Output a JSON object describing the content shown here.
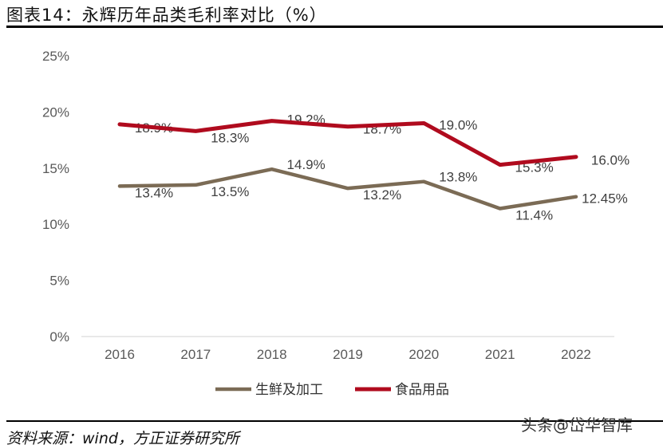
{
  "title": "图表14：永辉历年品类毛利率对比（%）",
  "source": "资料来源：wind，方正证券研究所",
  "watermark": "头条@岱华智库",
  "chart_data": {
    "type": "line",
    "title": "",
    "xlabel": "",
    "ylabel": "",
    "categories": [
      "2016",
      "2017",
      "2018",
      "2019",
      "2020",
      "2021",
      "2022"
    ],
    "ylim": [
      0,
      25
    ],
    "yticks": [
      "0%",
      "5%",
      "10%",
      "15%",
      "20%",
      "25%"
    ],
    "grid": false,
    "legend": "bottom",
    "series": [
      {
        "name": "生鲜及加工",
        "color": "#7b6b55",
        "values": [
          13.4,
          13.5,
          14.9,
          13.2,
          13.8,
          11.4,
          12.45
        ],
        "labels": [
          "13.4%",
          "13.5%",
          "14.9%",
          "13.2%",
          "13.8%",
          "11.4%",
          "12.45%"
        ]
      },
      {
        "name": "食品用品",
        "color": "#b00b1e",
        "values": [
          18.9,
          18.3,
          19.2,
          18.7,
          19.0,
          15.3,
          16.0
        ],
        "labels": [
          "18.9%",
          "18.3%",
          "19.2%",
          "18.7%",
          "19.0%",
          "15.3%",
          "16.0%"
        ]
      }
    ]
  }
}
